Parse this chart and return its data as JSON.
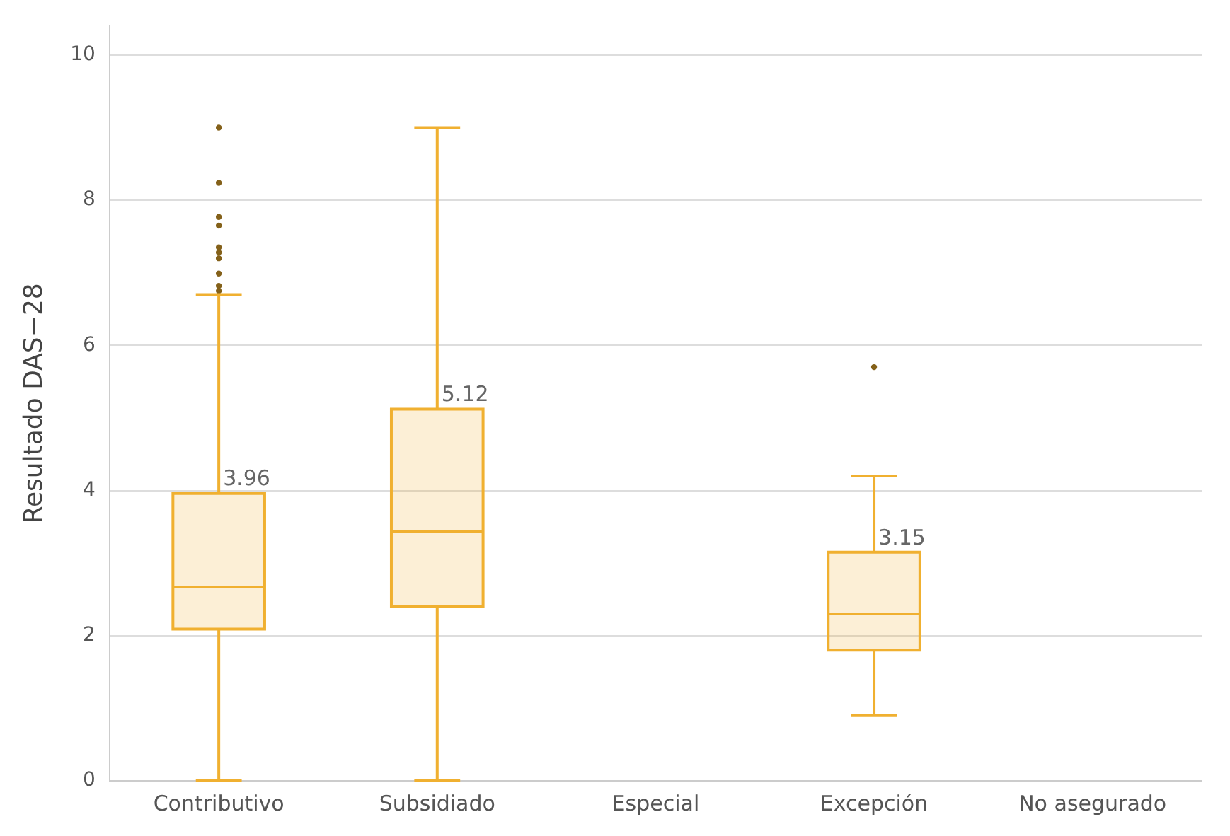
{
  "chart_data": {
    "type": "box",
    "ylabel": "Resultado DAS−28",
    "categories": [
      "Contributivo",
      "Subsidiado",
      "Especial",
      "Excepción",
      "No asegurado"
    ],
    "boxes": [
      {
        "low": 0,
        "q1": 2.09,
        "median": 2.67,
        "q3": 3.96,
        "high": 6.7,
        "outliers": [
          9.0,
          8.24,
          7.77,
          7.65,
          7.35,
          7.28,
          7.2,
          6.99,
          6.82,
          6.75
        ]
      },
      {
        "low": 0,
        "q1": 2.4,
        "median": 3.43,
        "q3": 5.12,
        "high": 9.0
      },
      null,
      {
        "low": 0.9,
        "q1": 1.8,
        "median": 2.3,
        "q3": 3.15,
        "high": 4.2,
        "outliers": [
          5.7
        ]
      },
      null
    ],
    "color": "#f0b030",
    "annotations": [
      {
        "text": "3.96",
        "x": "Contributivo",
        "y": 3.96
      },
      {
        "text": "5.12",
        "x": "Subsidiado",
        "y": 5.12
      },
      {
        "text": "3.15",
        "x": "Excepción",
        "y": 3.15
      }
    ],
    "ylim": [
      0,
      10.4
    ],
    "yticks": [
      0,
      2,
      4,
      6,
      8,
      10
    ],
    "grid": "y",
    "legend": false
  }
}
